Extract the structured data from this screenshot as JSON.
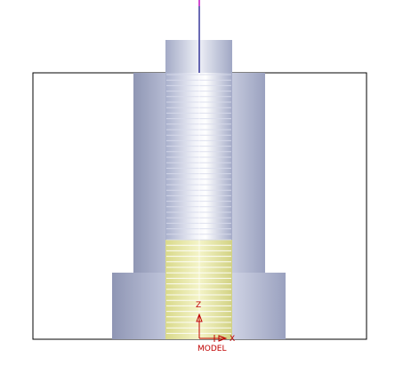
{
  "viewport": {
    "view_name": "MODEL",
    "axes": {
      "z_label": "Z",
      "x_label": "X"
    },
    "colors": {
      "background": "#ffffff",
      "outline": "#000000",
      "body_metal": "#b7bed6",
      "thread_highlight": "#e8e9a8",
      "tool_axis": "#1a1a8c",
      "tool_tip": "#d04bd0",
      "triad": "#c00000"
    },
    "icons": {
      "triad": "coordinate-triad-icon"
    }
  }
}
